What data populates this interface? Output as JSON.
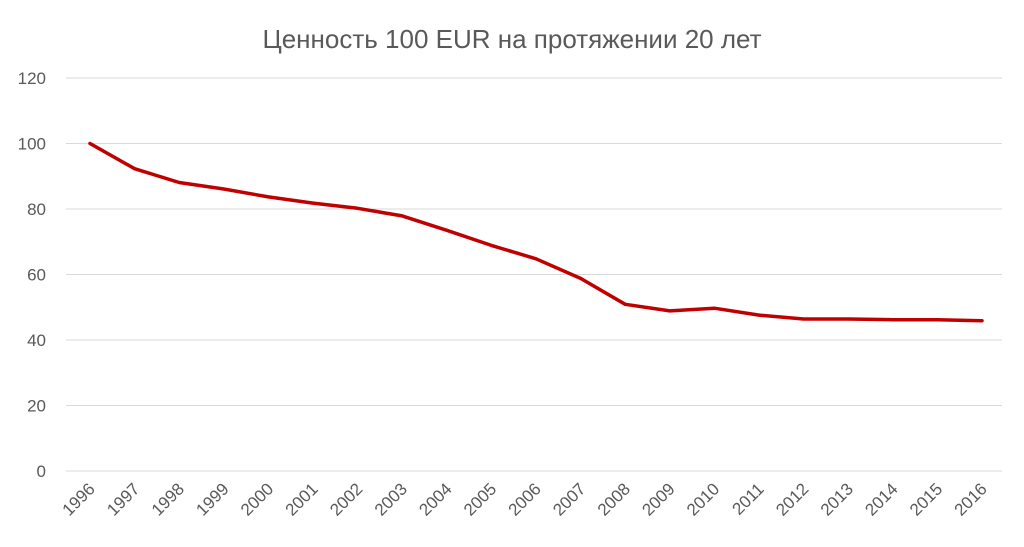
{
  "chart_data": {
    "type": "line",
    "title": "Ценность 100 EUR на протяжении 20 лет",
    "xlabel": "",
    "ylabel": "",
    "categories": [
      "1996",
      "1997",
      "1998",
      "1999",
      "2000",
      "2001",
      "2002",
      "2003",
      "2004",
      "2005",
      "2006",
      "2007",
      "2008",
      "2009",
      "2010",
      "2011",
      "2012",
      "2013",
      "2014",
      "2015",
      "2016"
    ],
    "series": [
      {
        "values": [
          100,
          92.3,
          88.1,
          86.1,
          83.7,
          81.8,
          80.2,
          77.9,
          73.5,
          68.9,
          64.8,
          58.8,
          50.9,
          48.9,
          49.7,
          47.6,
          46.4,
          46.4,
          46.2,
          46.2,
          45.9
        ],
        "color": "#c00000"
      }
    ],
    "yticks": [
      "0",
      "20",
      "40",
      "60",
      "80",
      "100",
      "120"
    ],
    "ylim": [
      0,
      120
    ],
    "grid": true,
    "legend": "none"
  }
}
